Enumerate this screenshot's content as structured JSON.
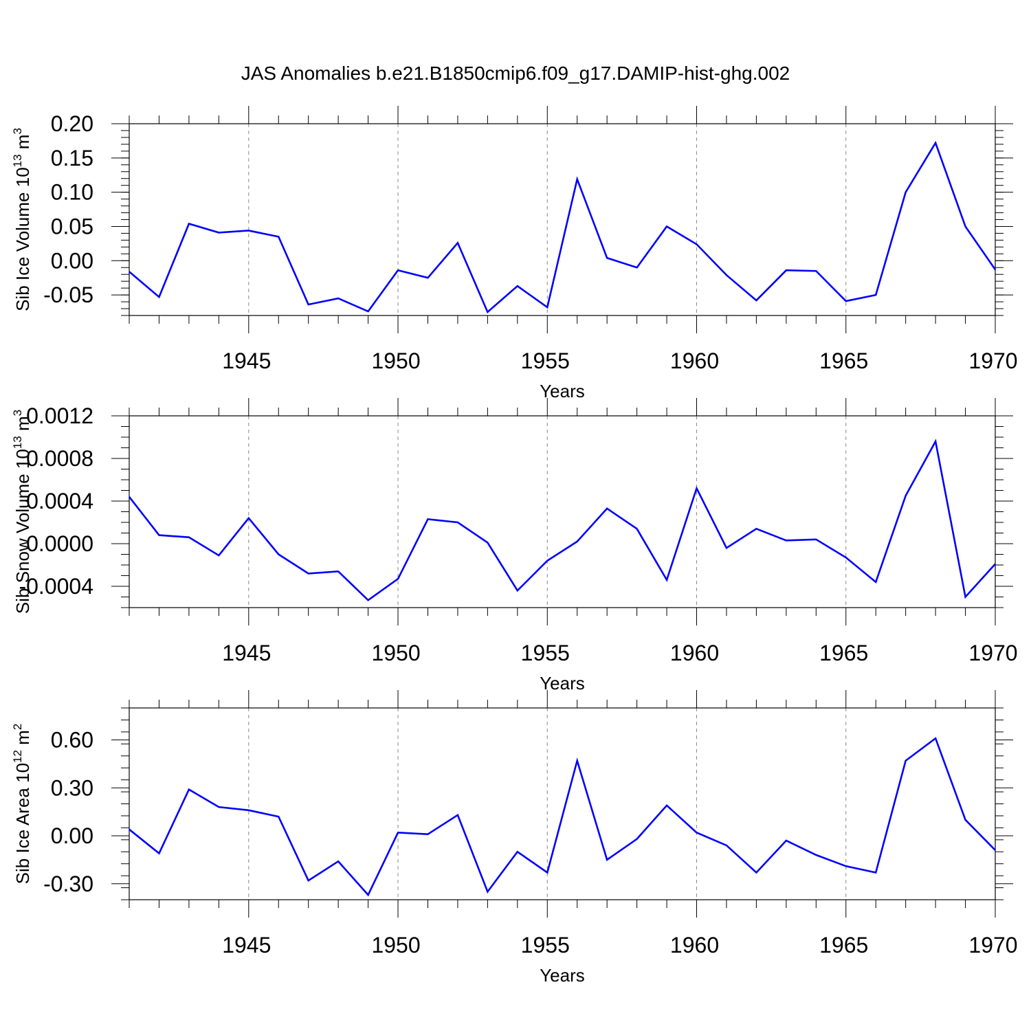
{
  "figure": {
    "title": "JAS Anomalies b.e21.B1850cmip6.f09_g17.DAMIP-hist-ghg.002",
    "colors": {
      "line": "#0000ff",
      "grid": "#888888",
      "axes": "#000000"
    }
  },
  "chart_data": [
    {
      "type": "line",
      "title": "",
      "xlabel": "Years",
      "ylabel_parts": [
        "Sib Ice Volume 10",
        "13",
        " m",
        "3"
      ],
      "x": [
        1941,
        1942,
        1943,
        1944,
        1945,
        1946,
        1947,
        1948,
        1949,
        1950,
        1951,
        1952,
        1953,
        1954,
        1955,
        1956,
        1957,
        1958,
        1959,
        1960,
        1961,
        1962,
        1963,
        1964,
        1965,
        1966,
        1967,
        1968,
        1969,
        1970
      ],
      "values": [
        -0.016,
        -0.053,
        0.054,
        0.041,
        0.044,
        0.035,
        -0.064,
        -0.055,
        -0.074,
        -0.014,
        -0.025,
        0.026,
        -0.075,
        -0.037,
        -0.068,
        0.119,
        0.004,
        -0.01,
        0.05,
        0.024,
        -0.021,
        -0.058,
        -0.014,
        -0.015,
        -0.059,
        -0.05,
        0.1,
        0.172,
        0.05,
        -0.013
      ],
      "xlim": [
        1941,
        1970
      ],
      "ylim": [
        -0.08,
        0.2
      ],
      "xticks": [
        1945,
        1950,
        1955,
        1960,
        1965,
        1970
      ],
      "xtick_labels": [
        "1945",
        "1950",
        "1955",
        "1960",
        "1965",
        "1970"
      ],
      "yticks": [
        -0.05,
        0.0,
        0.05,
        0.1,
        0.15,
        0.2
      ],
      "ytick_labels": [
        "-0.05",
        "0.00",
        "0.05",
        "0.10",
        "0.15",
        "0.20"
      ],
      "yminor_step": 0.01,
      "grid": "vertical dashed at major x ticks"
    },
    {
      "type": "line",
      "title": "",
      "xlabel": "Years",
      "ylabel_parts": [
        "Sib Snow Volume 10",
        "13",
        " m",
        "3"
      ],
      "x": [
        1941,
        1942,
        1943,
        1944,
        1945,
        1946,
        1947,
        1948,
        1949,
        1950,
        1951,
        1952,
        1953,
        1954,
        1955,
        1956,
        1957,
        1958,
        1959,
        1960,
        1961,
        1962,
        1963,
        1964,
        1965,
        1966,
        1967,
        1968,
        1969,
        1970
      ],
      "values": [
        0.00044,
        8e-05,
        6e-05,
        -0.00011,
        0.00024,
        -0.0001,
        -0.00028,
        -0.00026,
        -0.00053,
        -0.00033,
        0.00023,
        0.0002,
        1e-05,
        -0.00044,
        -0.00016,
        2e-05,
        0.00033,
        0.00014,
        -0.00034,
        0.00052,
        -4e-05,
        0.00014,
        3e-05,
        4e-05,
        -0.00013,
        -0.00036,
        0.00045,
        0.00096,
        -0.0005,
        -0.00019
      ],
      "xlim": [
        1941,
        1970
      ],
      "ylim": [
        -0.0006,
        0.0012
      ],
      "xticks": [
        1945,
        1950,
        1955,
        1960,
        1965,
        1970
      ],
      "xtick_labels": [
        "1945",
        "1950",
        "1955",
        "1960",
        "1965",
        "1970"
      ],
      "yticks": [
        -0.0004,
        0.0,
        0.0004,
        0.0008,
        0.0012
      ],
      "ytick_labels": [
        "-0.0004",
        "0.0000",
        "0.0004",
        "0.0008",
        "0.0012"
      ],
      "yminor_step": 0.0001,
      "grid": "vertical dashed at major x ticks"
    },
    {
      "type": "line",
      "title": "",
      "xlabel": "Years",
      "ylabel_parts": [
        "Sib Ice Area 10",
        "12",
        " m",
        "2"
      ],
      "x": [
        1941,
        1942,
        1943,
        1944,
        1945,
        1946,
        1947,
        1948,
        1949,
        1950,
        1951,
        1952,
        1953,
        1954,
        1955,
        1956,
        1957,
        1958,
        1959,
        1960,
        1961,
        1962,
        1963,
        1964,
        1965,
        1966,
        1967,
        1968,
        1969,
        1970
      ],
      "values": [
        0.04,
        -0.11,
        0.29,
        0.18,
        0.16,
        0.12,
        -0.28,
        -0.16,
        -0.37,
        0.02,
        0.01,
        0.13,
        -0.35,
        -0.1,
        -0.23,
        0.47,
        -0.15,
        -0.02,
        0.19,
        0.02,
        -0.06,
        -0.23,
        -0.03,
        -0.12,
        -0.19,
        -0.23,
        0.47,
        0.61,
        0.1,
        -0.09
      ],
      "xlim": [
        1941,
        1970
      ],
      "ylim": [
        -0.4,
        0.8
      ],
      "xticks": [
        1945,
        1950,
        1955,
        1960,
        1965,
        1970
      ],
      "xtick_labels": [
        "1945",
        "1950",
        "1955",
        "1960",
        "1965",
        "1970"
      ],
      "yticks": [
        -0.3,
        0.0,
        0.3,
        0.6
      ],
      "ytick_labels": [
        "-0.30",
        "0.00",
        "0.30",
        "0.60"
      ],
      "yminor_step": 0.075,
      "grid": "vertical dashed at major x ticks"
    }
  ]
}
